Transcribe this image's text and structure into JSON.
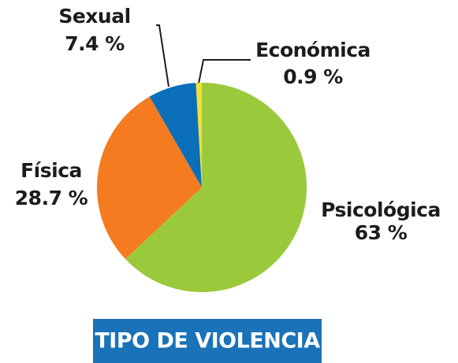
{
  "chart_data": {
    "type": "pie",
    "title": "TIPO DE VIOLENCIA",
    "categories": [
      "Psicológica",
      "Física",
      "Sexual",
      "Económica"
    ],
    "values": [
      63,
      28.7,
      7.4,
      0.9
    ],
    "value_labels": [
      "63 %",
      "28.7 %",
      "7.4 %",
      "0.9 %"
    ],
    "colors": [
      "#9bc93c",
      "#f47b20",
      "#0a6fb8",
      "#f2e03a"
    ]
  }
}
